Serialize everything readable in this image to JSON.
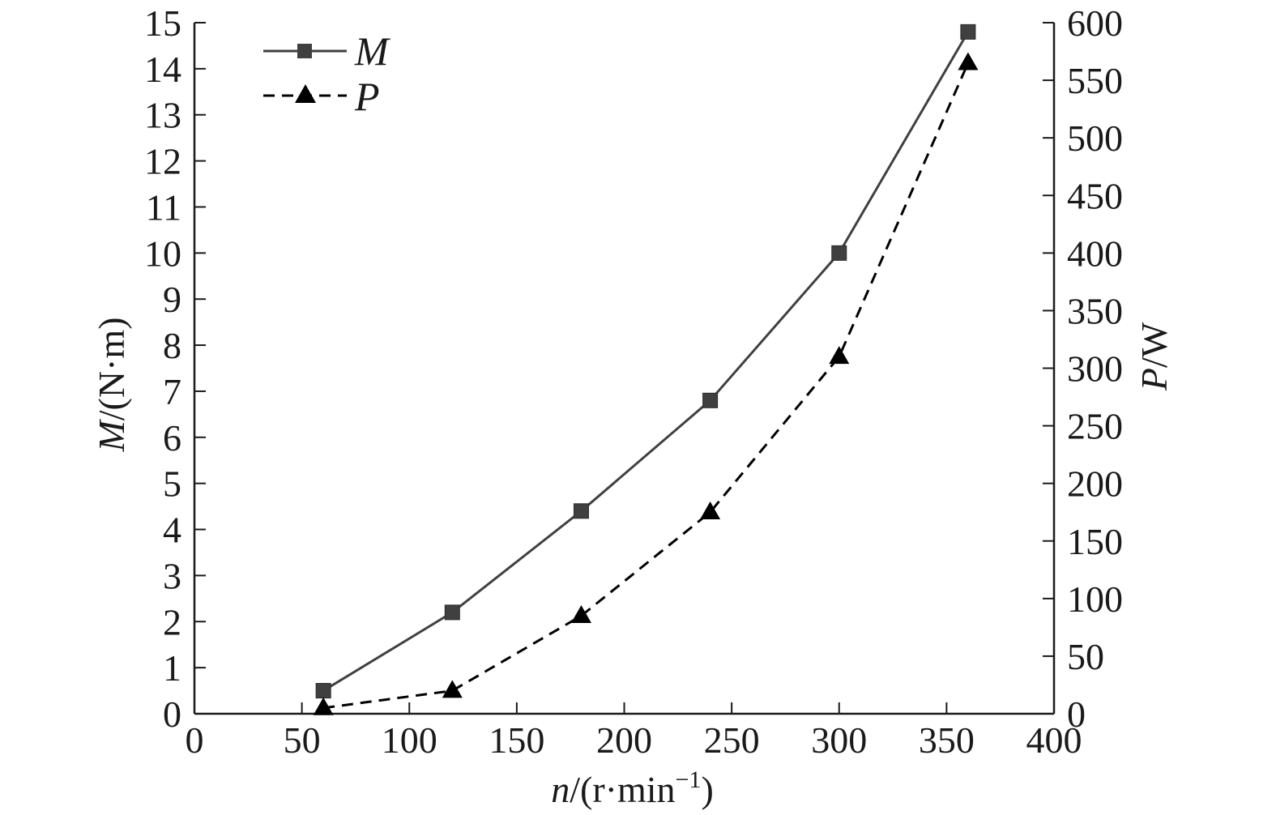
{
  "chart_data": {
    "type": "line",
    "x": [
      60,
      120,
      180,
      240,
      300,
      360
    ],
    "series": [
      {
        "name": "M",
        "axis": "left",
        "values": [
          0.5,
          2.2,
          4.4,
          6.8,
          10.0,
          14.8
        ],
        "color": "#404040",
        "line_style": "solid",
        "marker": "square"
      },
      {
        "name": "P",
        "axis": "right",
        "values": [
          5,
          20,
          85,
          175,
          310,
          565
        ],
        "color": "#000000",
        "line_style": "dashed",
        "marker": "triangle"
      }
    ],
    "xlim": [
      0,
      400
    ],
    "ylim_left": [
      0,
      15
    ],
    "ylim_right": [
      0,
      600
    ],
    "x_ticks": [
      "0",
      "50",
      "100",
      "150",
      "200",
      "250",
      "300",
      "350",
      "400"
    ],
    "y_left_ticks": [
      "0",
      "1",
      "2",
      "3",
      "4",
      "5",
      "6",
      "7",
      "8",
      "9",
      "10",
      "11",
      "12",
      "13",
      "14",
      "15"
    ],
    "y_right_ticks": [
      "0",
      "50",
      "100",
      "150",
      "200",
      "250",
      "300",
      "350",
      "400",
      "450",
      "500",
      "550",
      "600"
    ],
    "xlabel": {
      "var": "n",
      "unit_open": "/(r·min",
      "sup": "−1",
      "unit_close": ")"
    },
    "ylabel_left": {
      "var": "M",
      "unit": "/(N·m)"
    },
    "ylabel_right": {
      "var": "P",
      "unit": "/W"
    },
    "grid": false,
    "legend_position": "top-left"
  }
}
